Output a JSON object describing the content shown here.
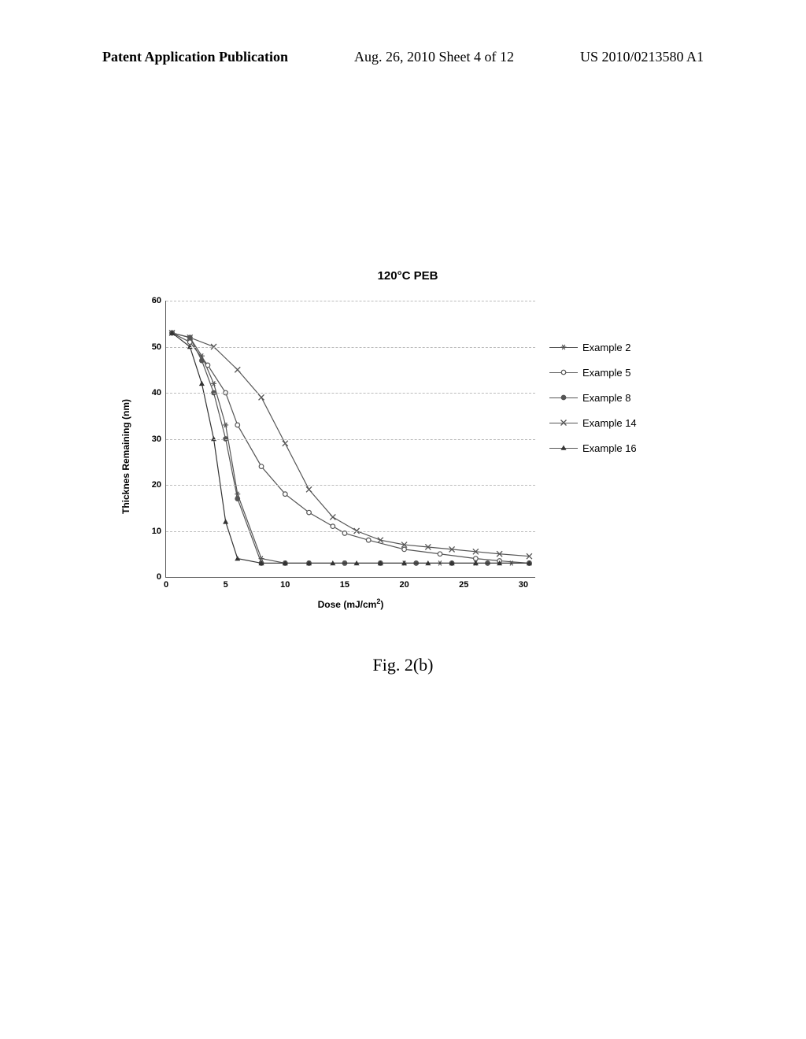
{
  "header": {
    "left": "Patent Application Publication",
    "center": "Aug. 26, 2010  Sheet 4 of 12",
    "right": "US 2010/0213580 A1"
  },
  "figure_caption": "Fig. 2(b)",
  "chart": {
    "type": "line",
    "title": "120°C PEB",
    "title_fontsize": 15,
    "xlabel": "Dose (mJ/cm²)",
    "ylabel": "Thicknes Remaining (nm)",
    "label_fontsize": 12,
    "tick_fontsize": 11,
    "xlim": [
      0,
      31
    ],
    "ylim": [
      0,
      60
    ],
    "xtick_step": 5,
    "ytick_step": 10,
    "xtick_labels": [
      "0",
      "5",
      "10",
      "15",
      "20",
      "25",
      "30"
    ],
    "ytick_labels": [
      "0",
      "10",
      "20",
      "30",
      "40",
      "50",
      "60"
    ],
    "background_color": "#ffffff",
    "grid_color": "#bbbbbb",
    "axis_color": "#555555",
    "line_width": 1.2,
    "marker_size": 7,
    "series": [
      {
        "name": "Example 2",
        "marker": "star",
        "color": "#555555",
        "x": [
          0.5,
          2,
          3,
          4,
          5,
          6,
          8,
          10,
          12,
          15,
          18,
          20,
          23,
          26,
          29,
          30.5
        ],
        "y": [
          53,
          52,
          48,
          42,
          33,
          18,
          4,
          3,
          3,
          3,
          3,
          3,
          3,
          3,
          3,
          3
        ]
      },
      {
        "name": "Example 5",
        "marker": "circle-open",
        "color": "#555555",
        "x": [
          0.5,
          2,
          3.5,
          5,
          6,
          8,
          10,
          12,
          14,
          15,
          17,
          20,
          23,
          26,
          28,
          30.5
        ],
        "y": [
          53,
          51,
          46,
          40,
          33,
          24,
          18,
          14,
          11,
          9.5,
          8,
          6,
          5,
          4,
          3.5,
          3
        ]
      },
      {
        "name": "Example 8",
        "marker": "circle-filled",
        "color": "#555555",
        "x": [
          0.5,
          2,
          3,
          4,
          5,
          6,
          8,
          10,
          12,
          15,
          18,
          21,
          24,
          27,
          30.5
        ],
        "y": [
          53,
          52,
          47,
          40,
          30,
          17,
          3,
          3,
          3,
          3,
          3,
          3,
          3,
          3,
          3
        ]
      },
      {
        "name": "Example 14",
        "marker": "x",
        "color": "#555555",
        "x": [
          0.5,
          2,
          4,
          6,
          8,
          10,
          12,
          14,
          16,
          18,
          20,
          22,
          24,
          26,
          28,
          30.5
        ],
        "y": [
          53,
          52,
          50,
          45,
          39,
          29,
          19,
          13,
          10,
          8,
          7,
          6.5,
          6,
          5.5,
          5,
          4.5
        ]
      },
      {
        "name": "Example 16",
        "marker": "triangle",
        "color": "#333333",
        "x": [
          0.5,
          2,
          3,
          4,
          5,
          6,
          8,
          10,
          12,
          14,
          16,
          18,
          20,
          22,
          24,
          26,
          28,
          30.5
        ],
        "y": [
          53,
          50,
          42,
          30,
          12,
          4,
          3,
          3,
          3,
          3,
          3,
          3,
          3,
          3,
          3,
          3,
          3,
          3
        ]
      }
    ],
    "legend_position": "right"
  }
}
